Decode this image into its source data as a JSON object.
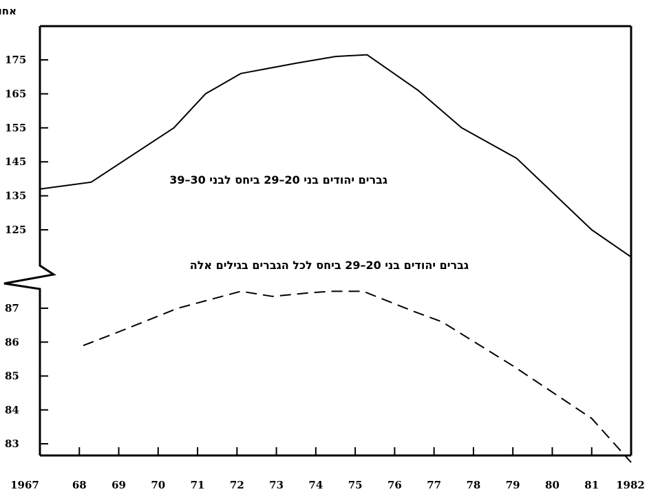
{
  "chart_data": {
    "type": "line",
    "ylabel": "אחוזים",
    "x_ticks": [
      "1967",
      "68",
      "69",
      "70",
      "71",
      "72",
      "73",
      "74",
      "75",
      "76",
      "77",
      "78",
      "79",
      "80",
      "81",
      "1982"
    ],
    "xlim": [
      1967,
      1982
    ],
    "axis_break": true,
    "grid": false,
    "legend": "none",
    "panels": {
      "upper": {
        "ylim": [
          120,
          177
        ],
        "y_ticks": [
          175,
          165,
          155,
          145,
          135,
          125
        ]
      },
      "lower": {
        "ylim": [
          82.2,
          87.6
        ],
        "y_ticks": [
          87,
          86,
          85,
          84,
          83
        ]
      }
    },
    "series": [
      {
        "name": "גברים יהודים בני 20–29 ביחס לבני 30–39",
        "panel": "upper",
        "line_style": "solid",
        "points": [
          [
            1967.0,
            137
          ],
          [
            1968.3,
            139
          ],
          [
            1970.4,
            155
          ],
          [
            1971.2,
            165
          ],
          [
            1972.1,
            171
          ],
          [
            1973.5,
            174
          ],
          [
            1974.5,
            176
          ],
          [
            1975.3,
            176.5
          ],
          [
            1976.6,
            166
          ],
          [
            1977.7,
            155
          ],
          [
            1979.1,
            146
          ],
          [
            1981.0,
            125
          ],
          [
            1982.0,
            117
          ]
        ]
      },
      {
        "name": "גברים יהודים בני 20–29 ביחס לכל הגברים בגילים אלה",
        "panel": "lower",
        "line_style": "dashed",
        "points": [
          [
            1968.1,
            85.9
          ],
          [
            1969.1,
            86.35
          ],
          [
            1970.5,
            87.0
          ],
          [
            1971.3,
            87.25
          ],
          [
            1972.1,
            87.5
          ],
          [
            1972.9,
            87.35
          ],
          [
            1973.8,
            87.45
          ],
          [
            1974.4,
            87.5
          ],
          [
            1975.2,
            87.5
          ],
          [
            1976.5,
            86.9
          ],
          [
            1977.2,
            86.6
          ],
          [
            1979.0,
            85.3
          ],
          [
            1981.0,
            83.75
          ],
          [
            1982.0,
            82.45
          ]
        ]
      }
    ]
  }
}
